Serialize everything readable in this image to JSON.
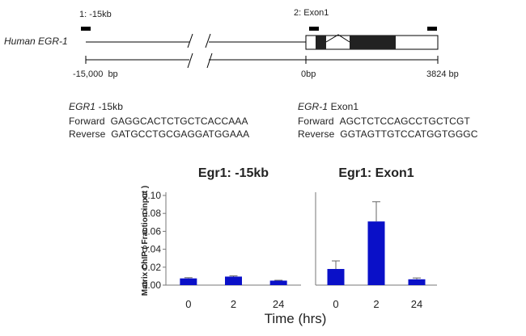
{
  "map": {
    "gene_label": "Human EGR-1",
    "probe1_label": "1: -15kb",
    "probe2_label": "2: Exon1",
    "coord_left": "-15,000",
    "coord_left_unit": "bp",
    "coord_mid": "0bp",
    "coord_right": "3824 bp"
  },
  "primers": {
    "left": {
      "gene": "EGR1",
      "region": " -15kb",
      "forward_label": "Forward",
      "forward_seq": "GAGGCACTCTGCTCACCAAA",
      "reverse_label": "Reverse",
      "reverse_seq": "GATGCCTGCGAGGATGGAAA"
    },
    "right": {
      "gene": "EGR-1",
      "region": " Exon1",
      "forward_label": "Forward",
      "forward_seq": "AGCTCTCCAGCCTGCTCGT",
      "reverse_label": "Reverse",
      "reverse_seq": "GGTAGTTGTCCATGGTGGGC"
    }
  },
  "chart_data": [
    {
      "type": "bar",
      "title": "Egr1: -15kb",
      "categories": [
        "0",
        "2",
        "24"
      ],
      "values": [
        0.0075,
        0.0095,
        0.005
      ],
      "errors": [
        0.0008,
        0.0008,
        0.0004
      ],
      "ylabel": "Matrix ChIP ( Fraction input )",
      "ylim": [
        0,
        0.1
      ],
      "yticks": [
        "0.00",
        "0.02",
        "0.04",
        "0.06",
        "0.08",
        "0.10"
      ],
      "color": "#0a10c8"
    },
    {
      "type": "bar",
      "title": "Egr1: Exon1",
      "categories": [
        "0",
        "2",
        "24"
      ],
      "values": [
        0.018,
        0.071,
        0.0065
      ],
      "errors": [
        0.009,
        0.022,
        0.0015
      ],
      "ylim": [
        0,
        0.1
      ],
      "color": "#0a10c8"
    }
  ],
  "xlabel": "Time (hrs)"
}
